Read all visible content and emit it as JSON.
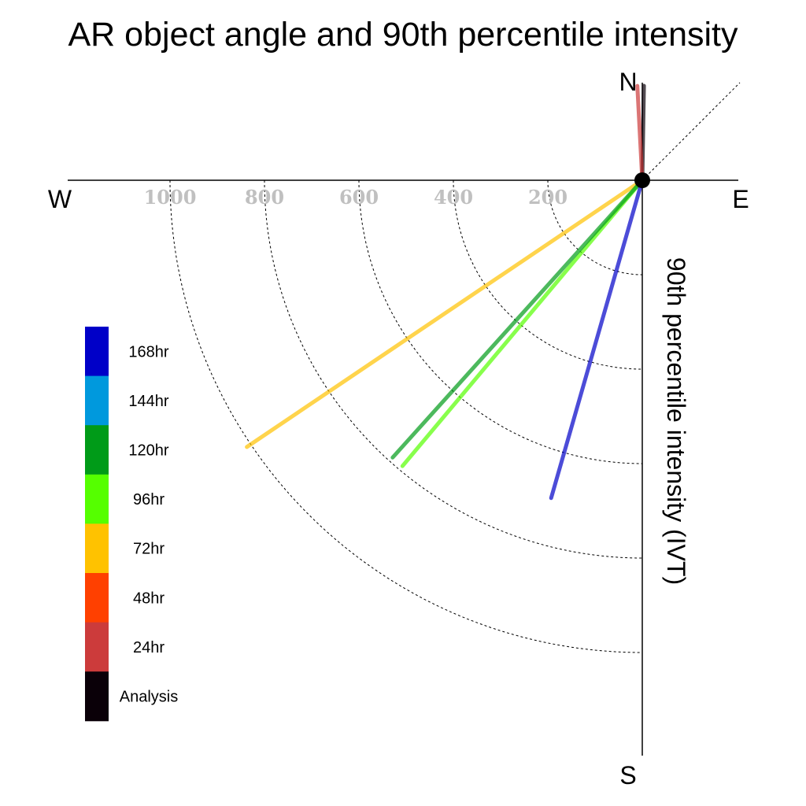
{
  "chart_data": {
    "type": "polar-vector",
    "title": "AR object angle and 90th percentile intensity",
    "compass": {
      "north": "N",
      "south": "S",
      "east": "E",
      "west": "W"
    },
    "radial_axis_label": "90th percentile intensity (IVT)",
    "rings": [
      200,
      400,
      600,
      800,
      1000
    ],
    "ring_labels": [
      "1000",
      "800",
      "600",
      "400",
      "200"
    ],
    "rmax": 1200,
    "series": [
      {
        "name": "Analysis",
        "color": "#0a0008",
        "angle_deg": 1,
        "value": 200
      },
      {
        "name": "24hr",
        "color": "#cc3b3b",
        "angle_deg": -3,
        "value": 200
      },
      {
        "name": "72hr",
        "color": "#ffc200",
        "angle_deg": 236,
        "value": 1010
      },
      {
        "name": "96hr",
        "color": "#55ff00",
        "angle_deg": 220,
        "value": 790
      },
      {
        "name": "120hr",
        "color": "#009b18",
        "angle_deg": 222,
        "value": 790
      },
      {
        "name": "168hr",
        "color": "#0000c8",
        "angle_deg": 196,
        "value": 700
      }
    ],
    "legend": [
      {
        "label": "168hr",
        "color": "#0000c8"
      },
      {
        "label": "144hr",
        "color": "#0099dd"
      },
      {
        "label": "120hr",
        "color": "#009b18"
      },
      {
        "label": "96hr",
        "color": "#55ff00"
      },
      {
        "label": "72hr",
        "color": "#ffc200"
      },
      {
        "label": "48hr",
        "color": "#ff4000"
      },
      {
        "label": "24hr",
        "color": "#cc3b3b"
      },
      {
        "label": "Analysis",
        "color": "#0a0008"
      }
    ]
  }
}
